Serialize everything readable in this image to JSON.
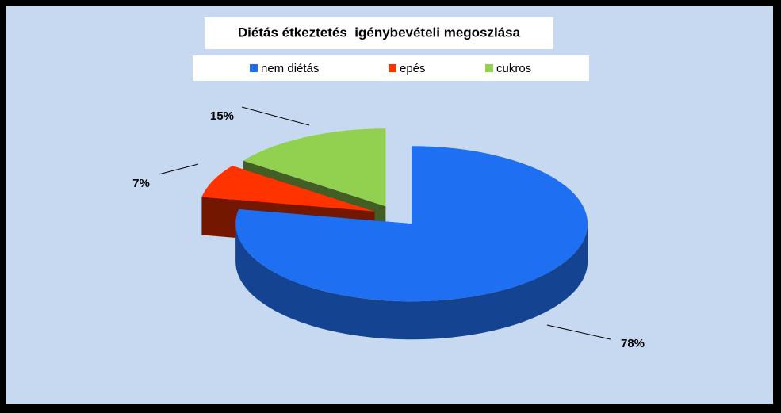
{
  "chart_data": {
    "type": "pie3d",
    "title": "Diétás étkeztetés  igénybevételi megoszlása",
    "categories": [
      "nem diétás",
      "epés",
      "cukros"
    ],
    "values": [
      78,
      7,
      15
    ],
    "value_labels": [
      "78%",
      "7%",
      "15%"
    ],
    "colors": [
      "#1f6ff2",
      "#ff3300",
      "#92d050"
    ],
    "legend": "top"
  }
}
